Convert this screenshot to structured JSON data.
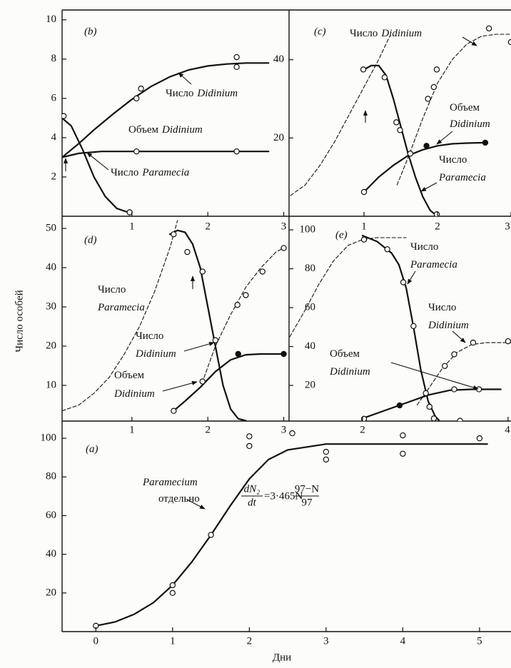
{
  "chart_data": [
    {
      "type": "line",
      "panel_label": "(b)",
      "xlim": [
        0.08,
        3.07
      ],
      "ylim": [
        0,
        10.5
      ],
      "xticks": [
        1,
        2,
        3
      ],
      "yticks": [
        2,
        4,
        6,
        8,
        10
      ],
      "series": [
        {
          "style": "solid",
          "x": [
            0.08,
            0.3,
            0.5,
            0.75,
            1.0,
            1.25,
            1.5,
            1.75,
            2.0,
            2.25,
            2.5,
            2.8
          ],
          "values": [
            3.0,
            3.7,
            4.4,
            5.2,
            5.95,
            6.6,
            7.1,
            7.45,
            7.65,
            7.75,
            7.8,
            7.8
          ]
        },
        {
          "style": "solid",
          "x": [
            0.08,
            0.3,
            0.6,
            1.0,
            1.5,
            2.0,
            2.5,
            2.8
          ],
          "values": [
            3.0,
            3.2,
            3.3,
            3.3,
            3.3,
            3.3,
            3.3,
            3.3
          ]
        },
        {
          "style": "solid",
          "x": [
            0.08,
            0.2,
            0.35,
            0.5,
            0.65,
            0.8,
            0.95
          ],
          "values": [
            5.0,
            4.6,
            3.4,
            2.0,
            1.0,
            0.4,
            0.2
          ]
        },
        {
          "marker": "open",
          "x": [
            0.1,
            1.06,
            1.12,
            2.38,
            2.38,
            1.06,
            2.38,
            0.97
          ],
          "values": [
            5.1,
            6.0,
            6.5,
            8.1,
            7.6,
            3.3,
            3.3,
            0.2
          ]
        }
      ],
      "annotations": [
        {
          "lines": [
            {
              "plain": "Число",
              "italic": "Didinium"
            }
          ]
        },
        {
          "lines": [
            {
              "plain": "Объем",
              "italic": "Didinium"
            }
          ]
        },
        {
          "lines": [
            {
              "plain": "Число",
              "italic": "Paramecia"
            }
          ]
        }
      ]
    },
    {
      "type": "line",
      "panel_label": "(c)",
      "xlim": [
        -0.02,
        3.0
      ],
      "ylim": [
        0,
        52.7
      ],
      "xticks": [
        1,
        2,
        3
      ],
      "yticks": [
        20,
        40
      ],
      "series": [
        {
          "style": "dashed",
          "x": [
            0,
            0.2,
            0.4,
            0.6,
            0.8,
            1.0,
            1.2,
            1.35
          ],
          "values": [
            5.3,
            8,
            13,
            19,
            26,
            33,
            40,
            46
          ]
        },
        {
          "style": "solid",
          "x": [
            1.0,
            1.1,
            1.2,
            1.3,
            1.4,
            1.5,
            1.6,
            1.7,
            1.8,
            1.9,
            2.0
          ],
          "values": [
            37.5,
            38.5,
            38.5,
            36,
            30,
            23,
            16,
            10,
            5,
            1.5,
            0
          ]
        },
        {
          "style": "dashed",
          "x": [
            1.45,
            1.6,
            1.8,
            2.0,
            2.2,
            2.4,
            2.6,
            2.8,
            3.0
          ],
          "values": [
            8,
            15,
            25,
            34,
            40,
            44,
            46,
            46.5,
            46.5
          ]
        },
        {
          "style": "solid",
          "x": [
            1.0,
            1.2,
            1.4,
            1.6,
            1.8,
            2.0,
            2.2,
            2.4,
            2.65
          ],
          "values": [
            6.2,
            10,
            13,
            15.5,
            17,
            18,
            18.5,
            18.7,
            18.8
          ]
        },
        {
          "marker": "open",
          "x": [
            0.99,
            1.28,
            1.44,
            1.49,
            1.99,
            2.7,
            3.0,
            1.99,
            1.87,
            1.95,
            1.0,
            1.63
          ],
          "values": [
            37.5,
            35.5,
            24,
            22,
            0.5,
            48,
            44.5,
            37.5,
            30,
            33,
            6.2,
            16
          ]
        },
        {
          "marker": "filled",
          "x": [
            1.85,
            2.65
          ],
          "values": [
            18,
            18.8
          ]
        }
      ],
      "annotations": [
        {
          "lines": [
            {
              "plain": "Число",
              "italic": "Didinium"
            }
          ]
        },
        {
          "lines": [
            {
              "plain": "Объем"
            },
            {
              "italic": "Didinium"
            }
          ]
        },
        {
          "lines": [
            {
              "plain": "Число"
            },
            {
              "italic": "Paramecia"
            }
          ]
        }
      ]
    },
    {
      "type": "line",
      "panel_label": "(d)",
      "xlim": [
        0.08,
        3.07
      ],
      "ylim": [
        0.9,
        53.1
      ],
      "xticks": [
        1,
        2,
        3
      ],
      "yticks": [
        10,
        20,
        30,
        40,
        50
      ],
      "series": [
        {
          "style": "dashed",
          "x": [
            0.08,
            0.3,
            0.5,
            0.7,
            0.9,
            1.1,
            1.3,
            1.5,
            1.6
          ],
          "values": [
            3.5,
            5,
            8,
            12,
            18,
            25,
            34,
            45,
            52
          ]
        },
        {
          "style": "solid",
          "x": [
            1.5,
            1.6,
            1.7,
            1.8,
            1.9,
            2.0,
            2.1,
            2.2,
            2.3,
            2.4,
            2.5
          ],
          "values": [
            48.5,
            49.5,
            49,
            46,
            40,
            30,
            20,
            10,
            4,
            1.5,
            1
          ]
        },
        {
          "style": "dashed",
          "x": [
            1.95,
            2.1,
            2.3,
            2.5,
            2.7,
            2.9,
            3.0
          ],
          "values": [
            12,
            20,
            28,
            35,
            40,
            44,
            45
          ]
        },
        {
          "style": "solid",
          "x": [
            1.55,
            1.7,
            1.9,
            2.1,
            2.3,
            2.5,
            2.7,
            3.0
          ],
          "values": [
            3.5,
            6,
            9.5,
            13.5,
            16.5,
            17.8,
            18,
            18
          ]
        },
        {
          "marker": "open",
          "x": [
            1.55,
            1.73,
            1.93,
            2.1,
            2.39,
            2.5,
            2.72,
            3.0,
            1.93,
            1.55
          ],
          "values": [
            48.5,
            44,
            39,
            21.5,
            30.5,
            33,
            39,
            45,
            11,
            3.5
          ]
        },
        {
          "marker": "filled",
          "x": [
            2.4,
            3.0
          ],
          "values": [
            18,
            18
          ]
        }
      ],
      "annotations": [
        {
          "lines": [
            {
              "plain": "Число"
            },
            {
              "italic": "Paramecia"
            }
          ]
        },
        {
          "lines": [
            {
              "plain": "Число"
            },
            {
              "italic": "Didinium"
            }
          ]
        },
        {
          "lines": [
            {
              "plain": "Объем"
            },
            {
              "italic": "Didinium"
            }
          ]
        }
      ]
    },
    {
      "type": "line",
      "panel_label": "(e)",
      "xlim": [
        0.99,
        4.04
      ],
      "ylim": [
        1.65,
        107
      ],
      "xticks": [
        2,
        4
      ],
      "yticks": [
        20,
        40,
        60,
        80,
        100
      ],
      "series": [
        {
          "style": "dashed",
          "x": [
            1.0,
            1.2,
            1.4,
            1.6,
            1.8,
            2.0,
            2.2,
            2.6
          ],
          "values": [
            45,
            58,
            72,
            84,
            92,
            95,
            96,
            96
          ]
        },
        {
          "style": "solid",
          "x": [
            2.0,
            2.2,
            2.4,
            2.5,
            2.6,
            2.7,
            2.8,
            2.9,
            3.0,
            3.05
          ],
          "values": [
            97,
            94,
            88,
            82,
            70,
            50,
            28,
            12,
            4,
            2
          ]
        },
        {
          "style": "dashed",
          "x": [
            2.75,
            2.9,
            3.1,
            3.3,
            3.5,
            3.7,
            4.04
          ],
          "values": [
            10,
            18,
            29,
            37,
            41,
            42,
            42
          ]
        },
        {
          "style": "solid",
          "x": [
            2.0,
            2.3,
            2.6,
            2.9,
            3.2,
            3.5,
            3.9
          ],
          "values": [
            3,
            7,
            11,
            15,
            17.5,
            18,
            18
          ]
        },
        {
          "marker": "open",
          "x": [
            2.02,
            2.34,
            2.56,
            2.7,
            2.92,
            2.98,
            3.34,
            2.87,
            3.13,
            3.26,
            3.52,
            4.0,
            2.02,
            3.26,
            3.6
          ],
          "values": [
            95,
            90,
            73,
            50.5,
            9,
            3,
            1.8,
            16,
            30,
            36,
            42,
            42.7,
            2.8,
            18,
            18
          ]
        },
        {
          "marker": "filled",
          "x": [
            2.51
          ],
          "values": [
            9.7
          ]
        }
      ],
      "annotations": [
        {
          "lines": [
            {
              "plain": "Число"
            },
            {
              "italic": "Paramecia"
            }
          ]
        },
        {
          "lines": [
            {
              "plain": "Число"
            },
            {
              "italic": "Didinium"
            }
          ]
        },
        {
          "lines": [
            {
              "plain": "Объем"
            },
            {
              "italic": "Didinium"
            }
          ]
        }
      ]
    },
    {
      "type": "line",
      "panel_label": "(a)",
      "xlim": [
        -0.44,
        5.41
      ],
      "ylim": [
        0,
        108.9
      ],
      "xticks": [
        0,
        1,
        2,
        3,
        4,
        5
      ],
      "yticks": [
        20,
        40,
        60,
        80,
        100
      ],
      "x_label": "Дни",
      "y_label": "Число особей",
      "series": [
        {
          "style": "solid",
          "x": [
            0,
            0.25,
            0.5,
            0.75,
            1,
            1.25,
            1.5,
            1.75,
            2,
            2.25,
            2.5,
            3,
            3.5,
            4,
            4.5,
            5.1
          ],
          "values": [
            3,
            5,
            9,
            15,
            24,
            36,
            50,
            65,
            79,
            89,
            94,
            97,
            97,
            97,
            97,
            97
          ]
        },
        {
          "marker": "open",
          "x": [
            0,
            1,
            1,
            1.5,
            2,
            2,
            2.56,
            3,
            3,
            4,
            4,
            5
          ],
          "values": [
            3,
            24,
            20,
            50,
            101,
            96,
            102.6,
            93,
            89,
            101.5,
            92,
            100
          ]
        }
      ],
      "annotations": [
        {
          "lines": [
            {
              "italic": "Paramecium"
            },
            {
              "plain": "отдельно"
            }
          ]
        }
      ],
      "formula": {
        "numerator_left": "dN₂",
        "denominator_left": "dt",
        "middle": "=3·465N",
        "numerator_right": "97−N",
        "denominator_right": "97"
      }
    }
  ]
}
